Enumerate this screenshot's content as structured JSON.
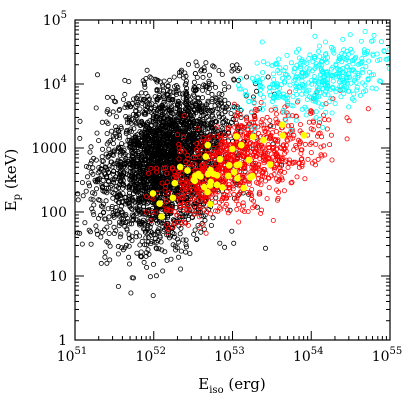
{
  "chart_data": {
    "type": "scatter",
    "title": "",
    "xlabel": {
      "main": "E",
      "sub": "iso",
      "rest": " (erg)"
    },
    "ylabel": {
      "main": "E",
      "sub": "p",
      "rest": " (keV)"
    },
    "x_scale": "log",
    "y_scale": "log",
    "xlim": [
      1e+51,
      1e+55
    ],
    "ylim": [
      1,
      100000
    ],
    "grid": false,
    "legend": "none",
    "x_ticks": [
      {
        "value": 1e+51,
        "base": "10",
        "exp": "51"
      },
      {
        "value": 1e+52,
        "base": "10",
        "exp": "52"
      },
      {
        "value": 1e+53,
        "base": "10",
        "exp": "53"
      },
      {
        "value": 1e+54,
        "base": "10",
        "exp": "54"
      },
      {
        "value": 1e+55,
        "base": "10",
        "exp": "55"
      }
    ],
    "y_ticks": [
      {
        "value": 1,
        "base": "1",
        "exp": ""
      },
      {
        "value": 10,
        "base": "10",
        "exp": ""
      },
      {
        "value": 100,
        "base": "100",
        "exp": ""
      },
      {
        "value": 1000,
        "base": "1000",
        "exp": ""
      },
      {
        "value": 10000,
        "base": "10",
        "exp": "4"
      },
      {
        "value": 100000,
        "base": "10",
        "exp": "5"
      }
    ],
    "series": [
      {
        "color": "#000000",
        "marker": "open-circle",
        "count": 3000,
        "center_log_x": 52.15,
        "center_log_y": 2.8,
        "spread_log_x": 0.42,
        "spread_log_y": 0.62,
        "correlation": 0.3,
        "log_x_range": [
          51.0,
          53.7
        ],
        "log_y_range": [
          0.4,
          4.35
        ]
      },
      {
        "color": "#ff0000",
        "marker": "open-circle",
        "count": 900,
        "center_log_x": 53.05,
        "center_log_y": 2.75,
        "spread_log_x": 0.5,
        "spread_log_y": 0.42,
        "correlation": 0.55,
        "log_x_range": [
          51.9,
          54.9
        ],
        "log_y_range": [
          1.6,
          4.0
        ]
      },
      {
        "color": "#00ffff",
        "marker": "open-circle",
        "count": 400,
        "center_log_x": 54.1,
        "center_log_y": 4.1,
        "spread_log_x": 0.5,
        "spread_log_y": 0.3,
        "correlation": 0.5,
        "log_x_range": [
          53.0,
          55.0
        ],
        "log_y_range": [
          3.2,
          4.95
        ]
      },
      {
        "color": "#ffff00",
        "marker": "filled-circle",
        "count": 45,
        "center_log_x": 52.9,
        "center_log_y": 2.7,
        "spread_log_x": 0.45,
        "spread_log_y": 0.32,
        "correlation": 0.75,
        "log_x_range": [
          51.6,
          54.0
        ],
        "log_y_range": [
          1.65,
          3.45
        ]
      }
    ]
  }
}
